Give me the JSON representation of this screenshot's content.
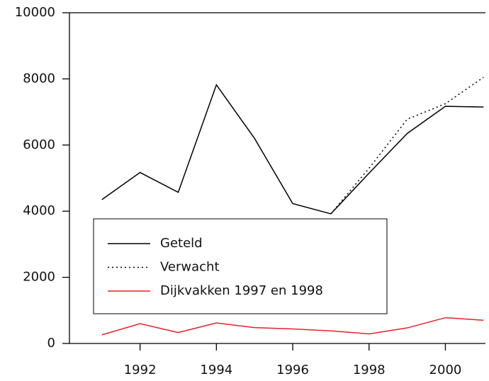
{
  "chart_data": {
    "type": "line",
    "x": [
      1991,
      1992,
      1993,
      1994,
      1995,
      1996,
      1997,
      1998,
      1999,
      2000,
      2001
    ],
    "series": [
      {
        "name": "Geteld",
        "color": "#000000",
        "dash": "solid",
        "values": [
          4350,
          5170,
          4570,
          7820,
          6200,
          4230,
          3920,
          5150,
          6350,
          7170,
          7150
        ]
      },
      {
        "name": "Verwacht",
        "color": "#000000",
        "dash": "dotted",
        "values": [
          null,
          null,
          null,
          null,
          null,
          null,
          3920,
          5300,
          6780,
          7250,
          8050
        ]
      },
      {
        "name": "Dijkvakken 1997 en 1998",
        "color": "#e8202a",
        "dash": "solid",
        "values": [
          260,
          600,
          330,
          620,
          480,
          440,
          380,
          290,
          470,
          780,
          700
        ]
      }
    ],
    "xlim": [
      1990.15,
      2001.05
    ],
    "xticks": [
      1992,
      1994,
      1996,
      1998,
      2000
    ],
    "ylim": [
      0,
      10000
    ],
    "yticks": [
      0,
      2000,
      4000,
      6000,
      8000,
      10000
    ],
    "grid": false,
    "legend": "lower left"
  }
}
